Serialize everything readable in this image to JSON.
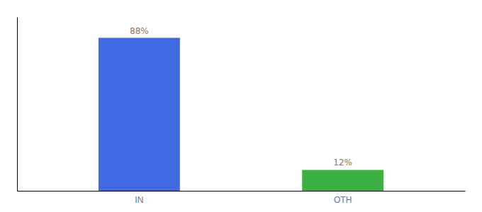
{
  "chart_data": {
    "type": "bar",
    "categories": [
      "IN",
      "OTH"
    ],
    "values": [
      88,
      12
    ],
    "colors": [
      "#4169e1",
      "#3cb043"
    ],
    "value_labels": [
      "88%",
      "12%"
    ],
    "data_labels": true,
    "ylim": [
      0,
      100
    ],
    "tick_labels": "x"
  }
}
